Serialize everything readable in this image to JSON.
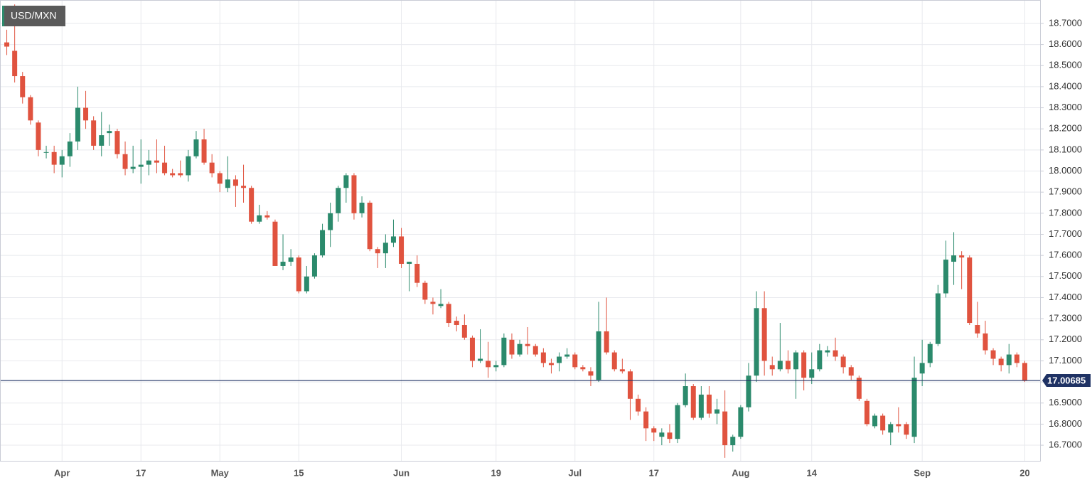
{
  "chart_data": {
    "type": "candlestick",
    "title": "USD/MXN",
    "x": [
      null,
      null,
      null,
      null,
      null,
      null,
      null,
      "Apr",
      null,
      null,
      null,
      null,
      null,
      null,
      null,
      null,
      null,
      "17",
      null,
      null,
      null,
      null,
      null,
      null,
      null,
      null,
      null,
      "May",
      null,
      null,
      null,
      null,
      null,
      null,
      null,
      null,
      null,
      "15",
      null,
      null,
      null,
      null,
      null,
      null,
      null,
      null,
      null,
      null,
      null,
      null,
      "Jun",
      null,
      null,
      null,
      null,
      null,
      null,
      null,
      null,
      null,
      null,
      null,
      "19",
      null,
      null,
      null,
      null,
      null,
      null,
      null,
      null,
      null,
      "Jul",
      null,
      null,
      null,
      null,
      null,
      null,
      null,
      null,
      null,
      "17",
      null,
      null,
      null,
      null,
      null,
      null,
      null,
      null,
      null,
      null,
      "Aug",
      null,
      null,
      null,
      null,
      null,
      null,
      null,
      null,
      "14",
      null,
      null,
      null,
      null,
      null,
      null,
      null,
      null,
      null,
      null,
      null,
      null,
      null,
      "Sep",
      null,
      null,
      null,
      null,
      null,
      null,
      null,
      null,
      null,
      null,
      null,
      null,
      "20"
    ],
    "open": [
      18.61,
      18.57,
      18.45,
      18.35,
      18.23,
      18.09,
      18.09,
      18.03,
      18.07,
      18.14,
      18.3,
      18.24,
      18.12,
      18.18,
      18.19,
      18.08,
      18.01,
      18.02,
      18.03,
      18.05,
      18.04,
      17.99,
      17.99,
      17.98,
      18.07,
      18.15,
      18.04,
      17.99,
      17.92,
      17.96,
      17.93,
      17.92,
      17.76,
      17.79,
      17.76,
      17.55,
      17.57,
      17.59,
      17.43,
      17.5,
      17.6,
      17.72,
      17.8,
      17.92,
      17.98,
      17.8,
      17.85,
      17.63,
      17.61,
      17.66,
      17.69,
      17.56,
      17.56,
      17.47,
      17.38,
      17.36,
      17.37,
      17.29,
      17.27,
      17.21,
      17.1,
      17.1,
      17.07,
      17.08,
      17.2,
      17.13,
      17.18,
      17.17,
      17.14,
      17.09,
      17.09,
      17.12,
      17.13,
      17.07,
      17.05,
      17.01,
      17.24,
      17.14,
      17.06,
      17.05,
      16.92,
      16.86,
      16.78,
      16.74,
      16.76,
      16.73,
      16.89,
      16.98,
      16.83,
      16.94,
      16.85,
      16.86,
      16.7,
      16.74,
      16.88,
      17.03,
      17.35,
      17.08,
      17.06,
      17.1,
      17.06,
      17.14,
      17.02,
      17.06,
      17.14,
      17.15,
      17.12,
      17.07,
      17.02,
      16.91,
      16.79,
      16.84,
      16.76,
      16.8,
      16.8,
      16.74,
      17.04,
      17.09,
      17.18,
      17.42,
      17.57,
      17.6,
      17.59,
      17.27,
      17.23,
      17.15,
      17.11,
      17.08,
      17.13,
      17.09
    ],
    "high": [
      18.67,
      18.79,
      18.47,
      18.36,
      18.24,
      18.12,
      18.12,
      18.1,
      18.18,
      18.4,
      18.38,
      18.26,
      18.28,
      18.22,
      18.2,
      18.14,
      18.12,
      18.15,
      18.1,
      18.15,
      18.12,
      18.01,
      18.05,
      18.1,
      18.19,
      18.2,
      18.08,
      18.0,
      18.07,
      17.98,
      18.03,
      17.93,
      17.84,
      17.81,
      17.77,
      17.7,
      17.63,
      17.6,
      17.55,
      17.61,
      17.75,
      17.85,
      17.93,
      17.99,
      17.99,
      17.88,
      17.86,
      17.64,
      17.7,
      17.77,
      17.73,
      17.57,
      17.6,
      17.48,
      17.4,
      17.44,
      17.38,
      17.31,
      17.32,
      17.22,
      17.25,
      17.19,
      17.1,
      17.23,
      17.23,
      17.2,
      17.26,
      17.18,
      17.16,
      17.11,
      17.14,
      17.16,
      17.14,
      17.08,
      17.07,
      17.38,
      17.4,
      17.15,
      17.11,
      17.06,
      16.94,
      16.88,
      16.79,
      16.78,
      16.8,
      16.9,
      17.04,
      16.99,
      16.98,
      16.98,
      16.92,
      16.96,
      16.75,
      16.89,
      17.09,
      17.43,
      17.43,
      17.12,
      17.28,
      17.15,
      17.15,
      17.15,
      17.14,
      17.18,
      17.17,
      17.21,
      17.13,
      17.08,
      17.03,
      16.92,
      16.85,
      16.85,
      16.81,
      16.88,
      16.81,
      17.12,
      17.2,
      17.19,
      17.46,
      17.67,
      17.71,
      17.62,
      17.6,
      17.38,
      17.29,
      17.16,
      17.12,
      17.18,
      17.14,
      17.1
    ],
    "low": [
      18.55,
      18.42,
      18.32,
      18.22,
      18.07,
      18.06,
      17.99,
      17.97,
      18.02,
      18.1,
      18.2,
      18.1,
      18.07,
      18.12,
      18.06,
      17.98,
      17.99,
      17.94,
      17.98,
      17.99,
      17.98,
      17.97,
      17.97,
      17.95,
      18.06,
      18.03,
      17.97,
      17.9,
      17.9,
      17.83,
      17.85,
      17.75,
      17.75,
      17.77,
      17.55,
      17.53,
      17.55,
      17.42,
      17.42,
      17.49,
      17.59,
      17.64,
      17.76,
      17.85,
      17.77,
      17.78,
      17.62,
      17.54,
      17.54,
      17.64,
      17.54,
      17.43,
      17.45,
      17.37,
      17.32,
      17.35,
      17.26,
      17.24,
      17.2,
      17.07,
      17.09,
      17.02,
      17.05,
      17.07,
      17.11,
      17.12,
      17.13,
      17.12,
      17.07,
      17.04,
      17.05,
      17.11,
      17.06,
      17.05,
      16.98,
      17.0,
      17.13,
      17.05,
      17.04,
      16.82,
      16.84,
      16.72,
      16.72,
      16.7,
      16.71,
      16.71,
      16.88,
      16.82,
      16.82,
      16.83,
      16.8,
      16.64,
      16.67,
      16.73,
      16.86,
      17.0,
      17.03,
      17.03,
      17.05,
      17.04,
      16.92,
      16.96,
      16.99,
      17.05,
      17.12,
      17.1,
      17.04,
      17.01,
      16.91,
      16.79,
      16.78,
      16.75,
      16.7,
      16.76,
      16.73,
      16.71,
      16.98,
      17.07,
      17.17,
      17.4,
      17.46,
      17.44,
      17.27,
      17.21,
      17.13,
      17.08,
      17.05,
      17.04,
      17.07,
      17.0
    ],
    "close": [
      18.59,
      18.45,
      18.35,
      18.24,
      18.1,
      18.09,
      18.03,
      18.07,
      18.14,
      18.3,
      18.24,
      18.12,
      18.17,
      18.19,
      18.08,
      18.01,
      18.02,
      18.03,
      18.05,
      18.04,
      17.99,
      17.98,
      17.98,
      18.07,
      18.15,
      18.04,
      17.99,
      17.94,
      17.96,
      17.93,
      17.92,
      17.76,
      17.79,
      17.78,
      17.55,
      17.57,
      17.59,
      17.43,
      17.5,
      17.6,
      17.72,
      17.8,
      17.92,
      17.98,
      17.8,
      17.85,
      17.63,
      17.61,
      17.66,
      17.69,
      17.56,
      17.57,
      17.47,
      17.39,
      17.37,
      17.37,
      17.28,
      17.27,
      17.21,
      17.1,
      17.11,
      17.07,
      17.08,
      17.21,
      17.13,
      17.18,
      17.17,
      17.13,
      17.09,
      17.08,
      17.12,
      17.13,
      17.07,
      17.06,
      17.03,
      17.24,
      17.14,
      17.06,
      17.05,
      16.92,
      16.86,
      16.78,
      16.76,
      16.76,
      16.73,
      16.89,
      16.98,
      16.83,
      16.94,
      16.85,
      16.87,
      16.7,
      16.74,
      16.88,
      17.03,
      17.35,
      17.1,
      17.06,
      17.1,
      17.06,
      17.14,
      17.02,
      17.06,
      17.15,
      17.15,
      17.12,
      17.07,
      17.03,
      16.92,
      16.8,
      16.84,
      16.77,
      16.8,
      16.79,
      16.75,
      17.02,
      17.09,
      17.18,
      17.42,
      17.58,
      17.6,
      17.59,
      17.28,
      17.23,
      17.15,
      17.11,
      17.08,
      17.13,
      17.09,
      17.00685
    ],
    "up_color": "#2b8a6c",
    "down_color": "#e0533f",
    "last_price": 17.00685,
    "last_price_color": "#1f3264",
    "ylim": [
      16.626,
      18.811
    ],
    "yticks": [
      {
        "value": 16.7,
        "label": "16.7000"
      },
      {
        "value": 16.8,
        "label": "16.8000"
      },
      {
        "value": 16.9,
        "label": "16.9000"
      },
      {
        "value": 17.0,
        "label": "17.0000"
      },
      {
        "value": 17.1,
        "label": "17.1000"
      },
      {
        "value": 17.2,
        "label": "17.2000"
      },
      {
        "value": 17.3,
        "label": "17.3000"
      },
      {
        "value": 17.4,
        "label": "17.4000"
      },
      {
        "value": 17.5,
        "label": "17.5000"
      },
      {
        "value": 17.6,
        "label": "17.6000"
      },
      {
        "value": 17.7,
        "label": "17.7000"
      },
      {
        "value": 17.8,
        "label": "17.8000"
      },
      {
        "value": 17.9,
        "label": "17.9000"
      },
      {
        "value": 18.0,
        "label": "18.0000"
      },
      {
        "value": 18.1,
        "label": "18.1000"
      },
      {
        "value": 18.2,
        "label": "18.2000"
      },
      {
        "value": 18.3,
        "label": "18.3000"
      },
      {
        "value": 18.4,
        "label": "18.4000"
      },
      {
        "value": 18.5,
        "label": "18.5000"
      },
      {
        "value": 18.6,
        "label": "18.6000"
      },
      {
        "value": 18.7,
        "label": "18.7000"
      }
    ],
    "grid": true,
    "y_axis_side": "right"
  }
}
